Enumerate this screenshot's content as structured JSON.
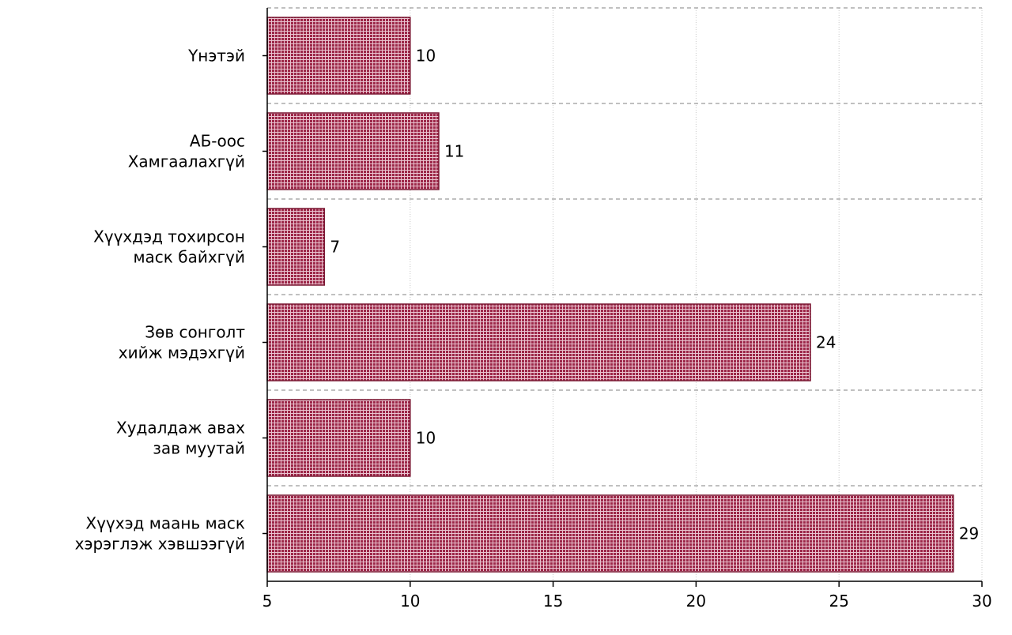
{
  "chart_data": {
    "type": "bar",
    "orientation": "horizontal",
    "title": "",
    "xlabel": "",
    "ylabel": "",
    "categories": [
      [
        "Үнэтэй"
      ],
      [
        "АБ-оос",
        "Хамгаалахгүй"
      ],
      [
        "Хүүхдэд тохирсон",
        "маск байхгүй"
      ],
      [
        "Зөв сонголт",
        "хийж мэдэхгүй"
      ],
      [
        "Худалдаж авах",
        "зав муутай"
      ],
      [
        "Хүүхэд маань маск",
        "хэрэглэж хэвшээгүй"
      ]
    ],
    "values": [
      10,
      11,
      7,
      24,
      10,
      29
    ],
    "value_labels": [
      "10",
      "11",
      "7",
      "24",
      "10",
      "29"
    ],
    "xlim": [
      5,
      30
    ],
    "xticks": [
      5,
      10,
      15,
      20,
      25,
      30
    ],
    "xtick_labels": [
      "5",
      "10",
      "15",
      "20",
      "25",
      "30"
    ],
    "grid": "vertical dotted, horizontal dashed separators",
    "colors": {
      "bar": "#9c2748",
      "bar_light": "#e9c3cf",
      "bar_edge": "#7a1833"
    }
  }
}
